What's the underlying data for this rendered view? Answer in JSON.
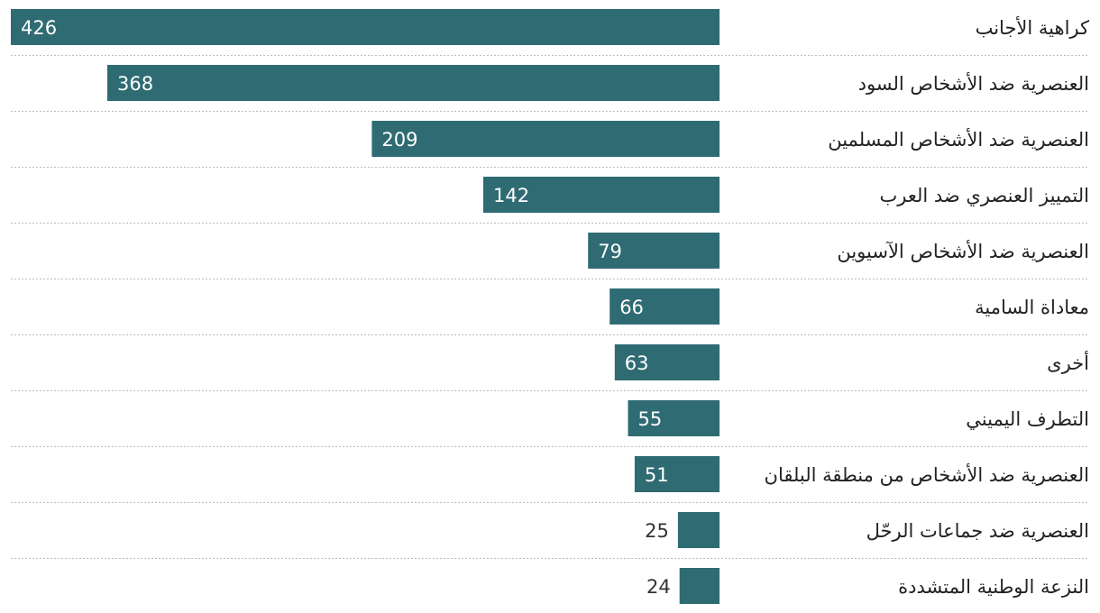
{
  "chart_data": {
    "type": "bar",
    "orientation": "horizontal",
    "direction": "rtl",
    "categories": [
      "كراهية الأجانب",
      "العنصرية ضد الأشخاص السود",
      "العنصرية ضد الأشخاص المسلمين",
      "التمييز العنصري ضد العرب",
      "العنصرية ضد الأشخاص الآسيوين",
      "معاداة السامية",
      "أخرى",
      "التطرف اليميني",
      "العنصرية ضد الأشخاص من منطقة البلقان",
      "العنصرية ضد جماعات الرحّل",
      "النزعة الوطنية المتشددة"
    ],
    "values": [
      426,
      368,
      209,
      142,
      79,
      66,
      63,
      55,
      51,
      25,
      24
    ],
    "xlim": [
      0,
      426
    ],
    "grid": false,
    "colors": {
      "bar": "#2f6b73",
      "label_inside": "#ffffff",
      "label_outside": "#333333"
    }
  }
}
